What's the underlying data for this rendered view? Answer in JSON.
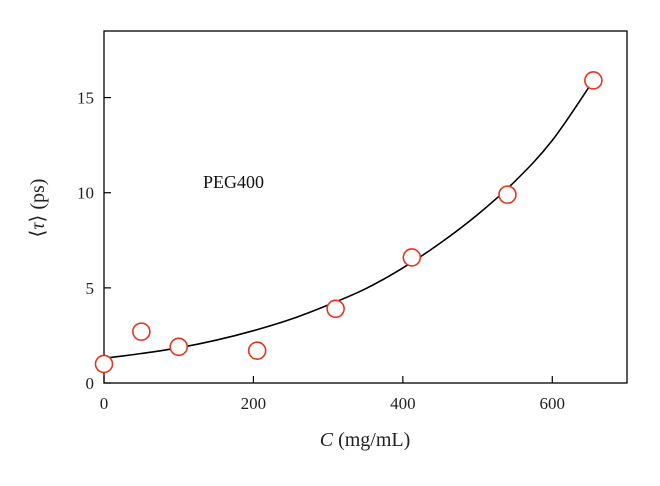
{
  "chart_data": {
    "type": "scatter",
    "annotation": "PEG400",
    "xlabel": {
      "italic": "C",
      "rest": " (mg/mL)"
    },
    "ylabel": {
      "open": "⟨",
      "symbol": "τ",
      "close": "⟩",
      "rest": " (ps)"
    },
    "xlim": [
      0,
      700
    ],
    "ylim": [
      0,
      18.5
    ],
    "xticks": [
      0,
      200,
      400,
      600
    ],
    "yticks": [
      0,
      5,
      10,
      15
    ],
    "grid": false,
    "legend": "none",
    "marker_color": "#e8341c",
    "curve_color": "#000000",
    "series": [
      {
        "marker": "open-circle",
        "x": [
          0,
          50,
          100,
          205,
          310,
          412,
          540,
          655
        ],
        "y": [
          1.0,
          2.7,
          1.9,
          1.7,
          3.9,
          6.6,
          9.9,
          15.9
        ]
      },
      {
        "style": "line",
        "x": [
          0,
          50,
          100,
          150,
          200,
          250,
          300,
          350,
          400,
          450,
          500,
          550,
          600,
          655
        ],
        "y": [
          1.3,
          1.55,
          1.85,
          2.25,
          2.75,
          3.35,
          4.1,
          4.95,
          6.05,
          7.35,
          8.85,
          10.6,
          12.75,
          15.9
        ]
      }
    ]
  }
}
